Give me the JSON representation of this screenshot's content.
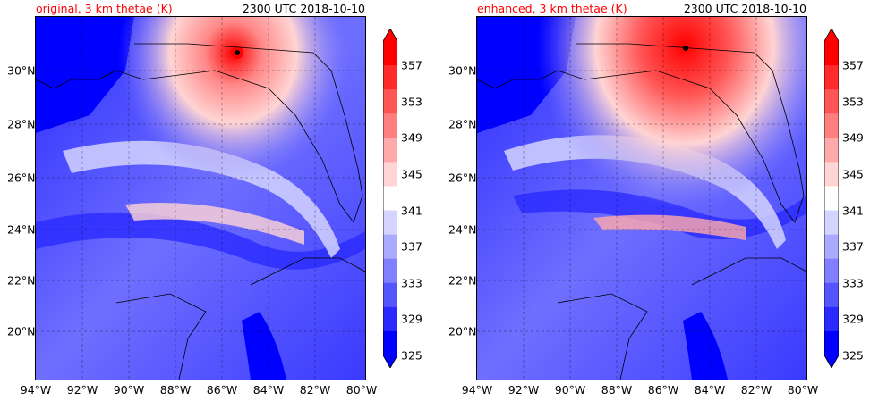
{
  "panels": [
    {
      "title_left": "original, 3 km thetae (K)",
      "title_right": "2300 UTC 2018-10-10"
    },
    {
      "title_left": "enhanced, 3 km thetae (K)",
      "title_right": "2300 UTC 2018-10-10"
    }
  ],
  "lat_labels": [
    "30°N",
    "28°N",
    "26°N",
    "24°N",
    "22°N",
    "20°N"
  ],
  "lon_labels": [
    "94°W",
    "92°W",
    "90°W",
    "88°W",
    "86°W",
    "84°W",
    "82°W",
    "80°W"
  ],
  "colorbar": {
    "labels": [
      "357",
      "353",
      "349",
      "345",
      "341",
      "337",
      "333",
      "329",
      "325"
    ],
    "colors": [
      "#ff0000",
      "#ff2a2a",
      "#ff5555",
      "#ff7f7f",
      "#ffaaaa",
      "#ffd4d4",
      "#ffffff",
      "#d4d4ff",
      "#aaaaff",
      "#7f7fff",
      "#5555ff",
      "#2a2aff",
      "#0000ff"
    ]
  }
}
